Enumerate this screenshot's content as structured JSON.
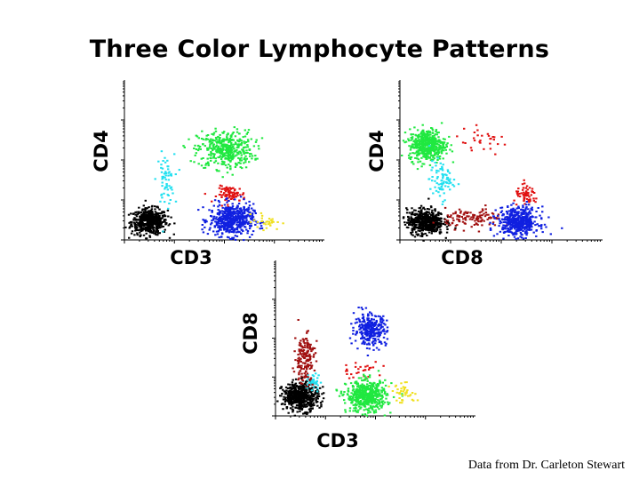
{
  "title": "Three Color Lymphocyte Patterns",
  "credit": "Data from Dr. Carleton Stewart",
  "colors": {
    "black": "#000000",
    "cyan": "#22e0f0",
    "green": "#20e840",
    "red": "#e01010",
    "darkred": "#a01010",
    "blue": "#1020e0",
    "yellow": "#f0e020"
  },
  "chart_data": [
    {
      "type": "scatter",
      "xlabel": "CD3",
      "ylabel": "CD4",
      "scale": "log",
      "series": [
        {
          "color": "black",
          "clusters": [
            {
              "x": 0.12,
              "y": 0.12,
              "sx": 0.045,
              "sy": 0.04,
              "n": 520
            }
          ]
        },
        {
          "color": "cyan",
          "clusters": [
            {
              "x": 0.2,
              "y": 0.38,
              "sx": 0.022,
              "sy": 0.08,
              "n": 60
            }
          ]
        },
        {
          "color": "green",
          "clusters": [
            {
              "x": 0.5,
              "y": 0.57,
              "sx": 0.07,
              "sy": 0.06,
              "n": 420
            }
          ]
        },
        {
          "color": "red",
          "clusters": [
            {
              "x": 0.53,
              "y": 0.29,
              "sx": 0.035,
              "sy": 0.025,
              "n": 80
            }
          ]
        },
        {
          "color": "blue",
          "clusters": [
            {
              "x": 0.53,
              "y": 0.13,
              "sx": 0.055,
              "sy": 0.05,
              "n": 520
            }
          ]
        },
        {
          "color": "yellow",
          "clusters": [
            {
              "x": 0.71,
              "y": 0.12,
              "sx": 0.035,
              "sy": 0.025,
              "n": 30
            }
          ]
        }
      ]
    },
    {
      "type": "scatter",
      "xlabel": "CD8",
      "ylabel": "CD4",
      "scale": "log",
      "series": [
        {
          "color": "green",
          "clusters": [
            {
              "x": 0.13,
              "y": 0.6,
              "sx": 0.045,
              "sy": 0.05,
              "n": 460
            }
          ]
        },
        {
          "color": "cyan",
          "clusters": [
            {
              "x": 0.2,
              "y": 0.38,
              "sx": 0.03,
              "sy": 0.06,
              "n": 80
            }
          ]
        },
        {
          "color": "black",
          "clusters": [
            {
              "x": 0.12,
              "y": 0.12,
              "sx": 0.045,
              "sy": 0.04,
              "n": 520
            }
          ]
        },
        {
          "color": "darkred",
          "clusters": [
            {
              "x": 0.36,
              "y": 0.14,
              "sx": 0.07,
              "sy": 0.03,
              "n": 120
            }
          ]
        },
        {
          "color": "red",
          "clusters": [
            {
              "x": 0.62,
              "y": 0.28,
              "sx": 0.03,
              "sy": 0.03,
              "n": 60
            },
            {
              "x": 0.4,
              "y": 0.62,
              "sx": 0.07,
              "sy": 0.04,
              "n": 30
            }
          ]
        },
        {
          "color": "blue",
          "clusters": [
            {
              "x": 0.58,
              "y": 0.12,
              "sx": 0.05,
              "sy": 0.045,
              "n": 480
            }
          ]
        }
      ]
    },
    {
      "type": "scatter",
      "xlabel": "CD3",
      "ylabel": "CD8",
      "scale": "log",
      "series": [
        {
          "color": "black",
          "clusters": [
            {
              "x": 0.12,
              "y": 0.13,
              "sx": 0.045,
              "sy": 0.045,
              "n": 520
            }
          ]
        },
        {
          "color": "cyan",
          "clusters": [
            {
              "x": 0.18,
              "y": 0.22,
              "sx": 0.02,
              "sy": 0.03,
              "n": 40
            }
          ]
        },
        {
          "color": "darkred",
          "clusters": [
            {
              "x": 0.14,
              "y": 0.38,
              "sx": 0.025,
              "sy": 0.08,
              "n": 170
            }
          ]
        },
        {
          "color": "blue",
          "clusters": [
            {
              "x": 0.47,
              "y": 0.56,
              "sx": 0.04,
              "sy": 0.05,
              "n": 300
            }
          ]
        },
        {
          "color": "red",
          "clusters": [
            {
              "x": 0.43,
              "y": 0.3,
              "sx": 0.05,
              "sy": 0.03,
              "n": 30
            }
          ]
        },
        {
          "color": "green",
          "clusters": [
            {
              "x": 0.45,
              "y": 0.13,
              "sx": 0.05,
              "sy": 0.05,
              "n": 520
            }
          ]
        },
        {
          "color": "yellow",
          "clusters": [
            {
              "x": 0.64,
              "y": 0.15,
              "sx": 0.035,
              "sy": 0.03,
              "n": 40
            }
          ]
        }
      ]
    }
  ]
}
